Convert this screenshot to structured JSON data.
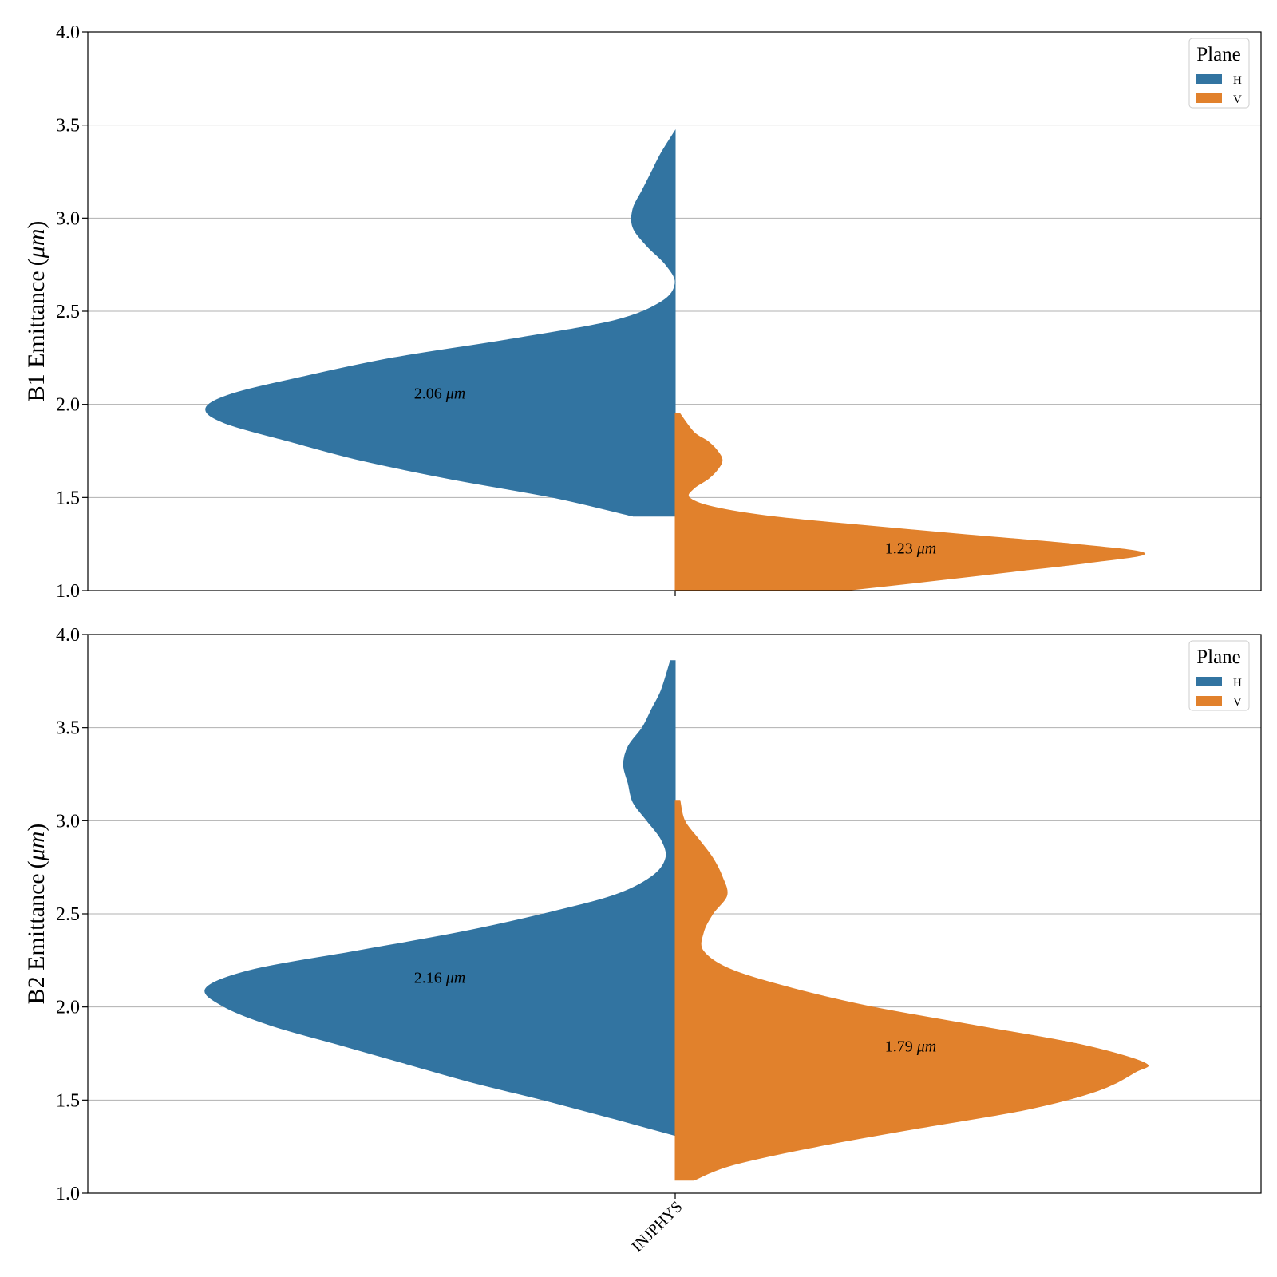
{
  "chart_data": [
    {
      "type": "violin",
      "ylabel": "B1 Emittance",
      "ylabel_unit": "μm",
      "ylim": [
        1.0,
        4.0
      ],
      "yticks": [
        "1.0",
        "1.5",
        "2.0",
        "2.5",
        "3.0",
        "3.5",
        "4.0"
      ],
      "grid": true,
      "categories": [
        "INJPHYS"
      ],
      "legend": {
        "title": "Plane",
        "location": "top-right",
        "entries": [
          "H",
          "V"
        ]
      },
      "series": [
        {
          "name": "H",
          "color": "#3274a1",
          "side": "left",
          "range": [
            1.4,
            3.47
          ],
          "density": [
            [
              1.4,
              0.09
            ],
            [
              1.5,
              0.26
            ],
            [
              1.6,
              0.48
            ],
            [
              1.7,
              0.67
            ],
            [
              1.8,
              0.82
            ],
            [
              1.9,
              0.96
            ],
            [
              1.98,
              1.0
            ],
            [
              2.06,
              0.94
            ],
            [
              2.15,
              0.79
            ],
            [
              2.25,
              0.6
            ],
            [
              2.35,
              0.35
            ],
            [
              2.45,
              0.13
            ],
            [
              2.55,
              0.03
            ],
            [
              2.65,
              0.0
            ],
            [
              2.75,
              0.02
            ],
            [
              2.85,
              0.06
            ],
            [
              2.95,
              0.09
            ],
            [
              3.05,
              0.09
            ],
            [
              3.15,
              0.07
            ],
            [
              3.25,
              0.05
            ],
            [
              3.35,
              0.03
            ],
            [
              3.47,
              0.0
            ]
          ],
          "annotation": {
            "value": 2.06,
            "label": "2.06",
            "unit": "μm"
          }
        },
        {
          "name": "V",
          "color": "#e1812c",
          "side": "right",
          "range": [
            1.0,
            1.95
          ],
          "density": [
            [
              1.0,
              0.36
            ],
            [
              1.05,
              0.54
            ],
            [
              1.1,
              0.71
            ],
            [
              1.15,
              0.88
            ],
            [
              1.2,
              1.0
            ],
            [
              1.25,
              0.85
            ],
            [
              1.3,
              0.62
            ],
            [
              1.35,
              0.4
            ],
            [
              1.4,
              0.2
            ],
            [
              1.45,
              0.08
            ],
            [
              1.5,
              0.03
            ],
            [
              1.55,
              0.04
            ],
            [
              1.6,
              0.07
            ],
            [
              1.65,
              0.09
            ],
            [
              1.7,
              0.1
            ],
            [
              1.75,
              0.09
            ],
            [
              1.8,
              0.07
            ],
            [
              1.85,
              0.04
            ],
            [
              1.95,
              0.01
            ]
          ],
          "annotation": {
            "value": 1.23,
            "label": "1.23",
            "unit": "μm"
          }
        }
      ]
    },
    {
      "type": "violin",
      "ylabel": "B2 Emittance",
      "ylabel_unit": "μm",
      "ylim": [
        1.0,
        4.0
      ],
      "yticks": [
        "1.0",
        "1.5",
        "2.0",
        "2.5",
        "3.0",
        "3.5",
        "4.0"
      ],
      "grid": true,
      "categories": [
        "INJPHYS"
      ],
      "legend": {
        "title": "Plane",
        "location": "top-right",
        "entries": [
          "H",
          "V"
        ]
      },
      "series": [
        {
          "name": "H",
          "color": "#3274a1",
          "side": "left",
          "range": [
            1.31,
            3.86
          ],
          "density": [
            [
              1.31,
              0.0
            ],
            [
              1.4,
              0.13
            ],
            [
              1.5,
              0.28
            ],
            [
              1.6,
              0.44
            ],
            [
              1.7,
              0.58
            ],
            [
              1.8,
              0.72
            ],
            [
              1.9,
              0.86
            ],
            [
              2.0,
              0.96
            ],
            [
              2.1,
              1.0
            ],
            [
              2.2,
              0.9
            ],
            [
              2.3,
              0.68
            ],
            [
              2.4,
              0.46
            ],
            [
              2.5,
              0.28
            ],
            [
              2.6,
              0.13
            ],
            [
              2.7,
              0.05
            ],
            [
              2.8,
              0.02
            ],
            [
              2.9,
              0.03
            ],
            [
              3.0,
              0.06
            ],
            [
              3.1,
              0.09
            ],
            [
              3.2,
              0.1
            ],
            [
              3.3,
              0.11
            ],
            [
              3.4,
              0.1
            ],
            [
              3.5,
              0.07
            ],
            [
              3.6,
              0.05
            ],
            [
              3.7,
              0.03
            ],
            [
              3.86,
              0.01
            ]
          ],
          "annotation": {
            "value": 2.16,
            "label": "2.16",
            "unit": "μm"
          }
        },
        {
          "name": "V",
          "color": "#e1812c",
          "side": "right",
          "range": [
            1.07,
            3.11
          ],
          "density": [
            [
              1.07,
              0.04
            ],
            [
              1.15,
              0.12
            ],
            [
              1.25,
              0.3
            ],
            [
              1.35,
              0.52
            ],
            [
              1.45,
              0.75
            ],
            [
              1.55,
              0.9
            ],
            [
              1.65,
              0.98
            ],
            [
              1.7,
              1.0
            ],
            [
              1.8,
              0.86
            ],
            [
              1.9,
              0.64
            ],
            [
              2.0,
              0.42
            ],
            [
              2.1,
              0.25
            ],
            [
              2.2,
              0.12
            ],
            [
              2.3,
              0.06
            ],
            [
              2.4,
              0.06
            ],
            [
              2.5,
              0.08
            ],
            [
              2.6,
              0.11
            ],
            [
              2.7,
              0.1
            ],
            [
              2.8,
              0.08
            ],
            [
              2.9,
              0.05
            ],
            [
              3.0,
              0.02
            ],
            [
              3.11,
              0.01
            ]
          ],
          "annotation": {
            "value": 1.79,
            "label": "1.79",
            "unit": "μm"
          }
        }
      ]
    }
  ]
}
